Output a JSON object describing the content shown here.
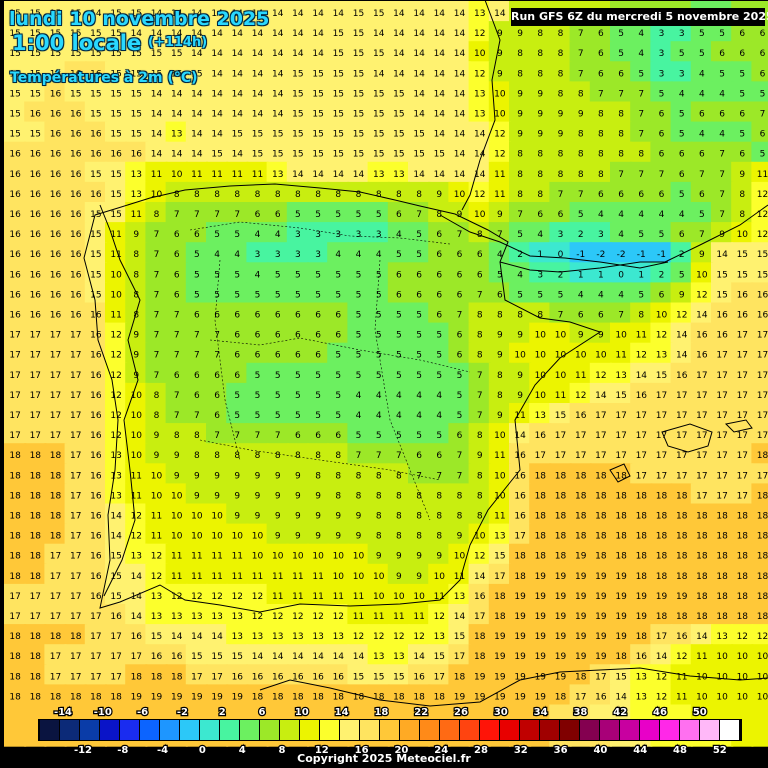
{
  "header": {
    "date": "lundi 10 novembre 2025",
    "hour": "1:00 locale",
    "lead": "(+114h)",
    "variable": "Températures à 2m (°C)"
  },
  "run_label": "Run GFS 6Z du mercredi 5 novembre 2025",
  "copyright": "Copyright 2025 Meteociel.fr",
  "legend": {
    "top_labels": [
      "-14",
      "-10",
      "-6",
      "-2",
      "2",
      "6",
      "10",
      "14",
      "18",
      "22",
      "26",
      "30",
      "34",
      "38",
      "42",
      "46",
      "50"
    ],
    "bottom_labels": [
      "-12",
      "-8",
      "-4",
      "0",
      "4",
      "8",
      "12",
      "16",
      "20",
      "24",
      "28",
      "32",
      "36",
      "40",
      "44",
      "48",
      "52"
    ],
    "colors": [
      "#0a1440",
      "#0c2a78",
      "#0a3ca8",
      "#0a14c8",
      "#1a2cf0",
      "#0c64ff",
      "#1e96ff",
      "#2cc8f8",
      "#3ce8d0",
      "#48f4a0",
      "#6cf060",
      "#9ce828",
      "#c8ee10",
      "#ecf400",
      "#fcff2c",
      "#fff270",
      "#ffe460",
      "#ffc838",
      "#ffaa24",
      "#ff8a18",
      "#ff6a14",
      "#ff4410",
      "#ff1408",
      "#e80000",
      "#c00000",
      "#a00000",
      "#800000",
      "#840050",
      "#a80078",
      "#c800a0",
      "#e800c8",
      "#ff28e8",
      "#ff70f0",
      "#ffb8f8",
      "#ffffff"
    ]
  },
  "temperature_grid": {
    "columns": 38,
    "rows": 37,
    "values": [
      [
        15,
        15,
        15,
        15,
        14,
        15,
        15,
        14,
        14,
        14,
        14,
        14,
        14,
        14,
        14,
        14,
        14,
        15,
        15,
        14,
        14,
        14,
        14,
        13,
        14,
        9,
        9,
        9,
        8,
        8,
        7,
        7,
        6,
        6,
        5,
        5,
        6,
        6
      ],
      [
        15,
        15,
        15,
        15,
        15,
        15,
        14,
        14,
        14,
        14,
        14,
        14,
        14,
        14,
        14,
        14,
        15,
        15,
        14,
        14,
        14,
        14,
        14,
        12,
        9,
        9,
        8,
        8,
        7,
        6,
        5,
        4,
        3,
        3,
        5,
        5,
        6,
        6
      ],
      [
        15,
        15,
        15,
        15,
        15,
        15,
        15,
        15,
        15,
        14,
        14,
        14,
        14,
        14,
        14,
        14,
        15,
        15,
        15,
        14,
        14,
        14,
        14,
        10,
        9,
        8,
        8,
        8,
        7,
        6,
        5,
        4,
        3,
        5,
        5,
        6,
        6,
        6
      ],
      [
        15,
        15,
        15,
        16,
        16,
        15,
        15,
        15,
        15,
        15,
        14,
        14,
        14,
        14,
        15,
        15,
        15,
        15,
        14,
        14,
        14,
        14,
        14,
        12,
        9,
        8,
        8,
        8,
        7,
        6,
        6,
        5,
        3,
        3,
        4,
        5,
        5,
        6
      ],
      [
        15,
        15,
        16,
        15,
        15,
        15,
        15,
        14,
        14,
        14,
        14,
        14,
        14,
        14,
        15,
        15,
        15,
        15,
        15,
        15,
        14,
        14,
        14,
        13,
        10,
        9,
        9,
        8,
        8,
        7,
        7,
        7,
        5,
        4,
        4,
        4,
        5,
        5
      ],
      [
        15,
        16,
        16,
        16,
        15,
        15,
        15,
        14,
        14,
        14,
        14,
        14,
        14,
        14,
        15,
        15,
        15,
        15,
        15,
        15,
        14,
        14,
        14,
        13,
        10,
        9,
        9,
        9,
        9,
        8,
        8,
        7,
        6,
        5,
        6,
        6,
        6,
        7
      ],
      [
        15,
        15,
        16,
        16,
        16,
        15,
        15,
        14,
        13,
        14,
        14,
        15,
        15,
        15,
        15,
        15,
        15,
        15,
        15,
        15,
        15,
        14,
        14,
        14,
        12,
        9,
        9,
        9,
        8,
        8,
        8,
        7,
        6,
        5,
        4,
        4,
        5,
        6
      ],
      [
        16,
        16,
        16,
        16,
        16,
        16,
        16,
        14,
        14,
        14,
        15,
        14,
        15,
        15,
        15,
        15,
        15,
        15,
        15,
        15,
        15,
        15,
        14,
        14,
        12,
        8,
        8,
        8,
        8,
        8,
        8,
        8,
        6,
        6,
        6,
        7,
        6,
        5
      ],
      [
        16,
        16,
        16,
        16,
        15,
        15,
        13,
        11,
        10,
        11,
        11,
        11,
        11,
        13,
        14,
        14,
        14,
        14,
        13,
        13,
        14,
        14,
        14,
        14,
        11,
        8,
        8,
        8,
        8,
        8,
        7,
        7,
        7,
        6,
        7,
        7,
        9,
        11
      ],
      [
        16,
        16,
        16,
        16,
        16,
        15,
        13,
        10,
        8,
        8,
        8,
        8,
        8,
        8,
        8,
        8,
        8,
        8,
        8,
        8,
        8,
        9,
        10,
        12,
        11,
        8,
        8,
        7,
        7,
        6,
        6,
        6,
        6,
        5,
        6,
        7,
        8,
        12
      ],
      [
        16,
        16,
        16,
        16,
        15,
        15,
        11,
        8,
        7,
        7,
        7,
        7,
        6,
        6,
        5,
        5,
        5,
        5,
        5,
        6,
        7,
        8,
        9,
        10,
        9,
        7,
        6,
        6,
        5,
        4,
        4,
        4,
        4,
        4,
        5,
        7,
        8,
        12
      ],
      [
        16,
        16,
        16,
        16,
        15,
        11,
        9,
        7,
        6,
        6,
        5,
        5,
        4,
        4,
        3,
        3,
        3,
        3,
        3,
        4,
        5,
        6,
        7,
        8,
        7,
        5,
        4,
        3,
        2,
        3,
        4,
        5,
        5,
        6,
        7,
        9,
        10,
        12
      ],
      [
        16,
        16,
        16,
        16,
        15,
        11,
        8,
        7,
        6,
        5,
        4,
        4,
        3,
        3,
        3,
        3,
        4,
        4,
        4,
        5,
        5,
        6,
        6,
        6,
        4,
        2,
        1,
        0,
        -1,
        -2,
        -2,
        -1,
        -1,
        2,
        9,
        14,
        15,
        15
      ],
      [
        16,
        16,
        16,
        16,
        15,
        10,
        8,
        7,
        6,
        5,
        5,
        5,
        4,
        5,
        5,
        5,
        5,
        5,
        5,
        6,
        6,
        6,
        6,
        6,
        5,
        4,
        3,
        2,
        1,
        1,
        0,
        1,
        2,
        5,
        10,
        15,
        15,
        15
      ],
      [
        16,
        16,
        16,
        16,
        15,
        10,
        8,
        7,
        6,
        5,
        5,
        5,
        5,
        5,
        5,
        5,
        5,
        5,
        5,
        6,
        6,
        6,
        6,
        7,
        6,
        5,
        5,
        5,
        4,
        4,
        4,
        5,
        6,
        9,
        12,
        15,
        16,
        16
      ],
      [
        16,
        16,
        16,
        16,
        16,
        11,
        8,
        7,
        7,
        6,
        6,
        6,
        6,
        6,
        6,
        6,
        6,
        5,
        5,
        5,
        5,
        6,
        7,
        8,
        8,
        8,
        8,
        7,
        6,
        6,
        7,
        8,
        10,
        12,
        14,
        16,
        16,
        16
      ],
      [
        17,
        17,
        17,
        17,
        16,
        12,
        9,
        7,
        7,
        7,
        7,
        6,
        6,
        6,
        6,
        6,
        6,
        5,
        5,
        5,
        5,
        5,
        6,
        8,
        9,
        9,
        10,
        10,
        9,
        9,
        10,
        11,
        12,
        14,
        16,
        16,
        17,
        17
      ],
      [
        17,
        17,
        17,
        17,
        16,
        12,
        9,
        7,
        7,
        7,
        7,
        6,
        6,
        6,
        6,
        6,
        5,
        5,
        5,
        5,
        5,
        5,
        6,
        8,
        9,
        10,
        10,
        10,
        10,
        10,
        11,
        12,
        13,
        14,
        16,
        17,
        17,
        17
      ],
      [
        17,
        17,
        17,
        17,
        16,
        12,
        9,
        7,
        6,
        6,
        6,
        6,
        5,
        5,
        5,
        5,
        5,
        5,
        5,
        5,
        5,
        5,
        5,
        7,
        8,
        9,
        10,
        10,
        11,
        12,
        13,
        14,
        15,
        16,
        17,
        17,
        17,
        17
      ],
      [
        17,
        17,
        17,
        17,
        16,
        12,
        10,
        8,
        7,
        6,
        6,
        5,
        5,
        5,
        5,
        5,
        5,
        4,
        4,
        4,
        4,
        4,
        5,
        7,
        8,
        9,
        10,
        11,
        12,
        14,
        15,
        16,
        17,
        17,
        17,
        17,
        17,
        17
      ],
      [
        17,
        17,
        17,
        17,
        16,
        12,
        10,
        8,
        7,
        7,
        6,
        5,
        5,
        5,
        5,
        5,
        5,
        4,
        4,
        4,
        4,
        4,
        5,
        7,
        9,
        11,
        13,
        15,
        16,
        17,
        17,
        17,
        17,
        17,
        17,
        17,
        17,
        17
      ],
      [
        17,
        17,
        17,
        17,
        16,
        12,
        10,
        9,
        8,
        8,
        7,
        7,
        7,
        7,
        6,
        6,
        6,
        5,
        5,
        5,
        5,
        5,
        6,
        8,
        10,
        14,
        16,
        17,
        17,
        17,
        17,
        17,
        17,
        17,
        17,
        17,
        17,
        17
      ],
      [
        18,
        18,
        18,
        17,
        16,
        13,
        10,
        9,
        9,
        8,
        8,
        8,
        8,
        8,
        8,
        8,
        8,
        7,
        7,
        7,
        6,
        6,
        7,
        9,
        11,
        16,
        17,
        17,
        17,
        17,
        17,
        17,
        17,
        17,
        17,
        17,
        17,
        18
      ],
      [
        18,
        18,
        18,
        17,
        16,
        13,
        11,
        10,
        9,
        9,
        9,
        9,
        9,
        9,
        9,
        8,
        8,
        8,
        8,
        8,
        7,
        7,
        7,
        8,
        10,
        16,
        18,
        18,
        18,
        18,
        18,
        17,
        17,
        17,
        17,
        17,
        17,
        17
      ],
      [
        18,
        18,
        18,
        17,
        16,
        13,
        11,
        10,
        10,
        9,
        9,
        9,
        9,
        9,
        9,
        9,
        8,
        8,
        8,
        8,
        8,
        8,
        8,
        8,
        10,
        16,
        18,
        18,
        18,
        18,
        18,
        18,
        18,
        18,
        17,
        17,
        17,
        18
      ],
      [
        18,
        18,
        18,
        17,
        16,
        14,
        12,
        11,
        10,
        10,
        10,
        9,
        9,
        9,
        9,
        9,
        9,
        9,
        8,
        8,
        8,
        8,
        8,
        8,
        11,
        16,
        18,
        18,
        18,
        18,
        18,
        18,
        18,
        18,
        18,
        18,
        18,
        18
      ],
      [
        18,
        18,
        18,
        17,
        16,
        14,
        12,
        11,
        10,
        10,
        10,
        10,
        10,
        9,
        9,
        9,
        9,
        9,
        8,
        8,
        8,
        8,
        9,
        10,
        13,
        17,
        18,
        18,
        18,
        18,
        18,
        18,
        18,
        18,
        18,
        18,
        18,
        18
      ],
      [
        18,
        18,
        17,
        17,
        16,
        15,
        13,
        12,
        11,
        11,
        11,
        11,
        10,
        10,
        10,
        10,
        10,
        10,
        9,
        9,
        9,
        9,
        10,
        12,
        15,
        18,
        18,
        18,
        19,
        18,
        18,
        18,
        18,
        18,
        18,
        18,
        18,
        18
      ],
      [
        18,
        18,
        17,
        17,
        16,
        15,
        14,
        12,
        11,
        11,
        11,
        11,
        11,
        11,
        11,
        11,
        10,
        10,
        10,
        9,
        9,
        10,
        11,
        14,
        17,
        18,
        19,
        19,
        19,
        19,
        19,
        18,
        18,
        18,
        18,
        18,
        18,
        18
      ],
      [
        17,
        17,
        17,
        17,
        16,
        15,
        14,
        13,
        12,
        12,
        12,
        12,
        12,
        11,
        11,
        11,
        11,
        11,
        10,
        10,
        10,
        11,
        13,
        16,
        18,
        19,
        19,
        19,
        19,
        19,
        19,
        19,
        19,
        19,
        18,
        18,
        18,
        18
      ],
      [
        17,
        17,
        17,
        17,
        17,
        16,
        14,
        13,
        13,
        13,
        13,
        13,
        12,
        12,
        12,
        12,
        12,
        11,
        11,
        11,
        11,
        12,
        14,
        17,
        18,
        19,
        19,
        19,
        19,
        19,
        19,
        19,
        18,
        18,
        18,
        18,
        18,
        18
      ],
      [
        18,
        18,
        18,
        18,
        17,
        17,
        16,
        15,
        14,
        14,
        14,
        13,
        13,
        13,
        13,
        13,
        13,
        12,
        12,
        12,
        12,
        13,
        15,
        18,
        19,
        19,
        19,
        19,
        19,
        19,
        19,
        18,
        17,
        16,
        14,
        13,
        12,
        12
      ],
      [
        18,
        18,
        17,
        17,
        17,
        17,
        17,
        16,
        16,
        15,
        15,
        15,
        14,
        14,
        14,
        14,
        14,
        14,
        13,
        13,
        14,
        15,
        17,
        18,
        19,
        19,
        19,
        19,
        19,
        19,
        18,
        16,
        14,
        12,
        11,
        10,
        10,
        10
      ],
      [
        18,
        18,
        17,
        17,
        17,
        17,
        18,
        18,
        18,
        17,
        17,
        16,
        16,
        16,
        16,
        16,
        16,
        15,
        15,
        15,
        16,
        17,
        18,
        19,
        19,
        19,
        19,
        19,
        18,
        17,
        15,
        13,
        12,
        11,
        10,
        10,
        10,
        10
      ],
      [
        18,
        18,
        18,
        18,
        18,
        18,
        19,
        19,
        19,
        19,
        19,
        19,
        18,
        18,
        18,
        18,
        18,
        18,
        18,
        18,
        18,
        18,
        19,
        19,
        19,
        19,
        19,
        18,
        17,
        16,
        14,
        13,
        12,
        11,
        10,
        10,
        10,
        10
      ],
      [
        18,
        18,
        18,
        18,
        18,
        18,
        19,
        19,
        19,
        19,
        19,
        19,
        19,
        19,
        19,
        19,
        19,
        19,
        19,
        19,
        19,
        19,
        19,
        19,
        19,
        19,
        18,
        17,
        16,
        15,
        14,
        13,
        12,
        12,
        11,
        11,
        10,
        10
      ],
      [
        18,
        18,
        18,
        18,
        18,
        18,
        19,
        19,
        19,
        19,
        19,
        19,
        19,
        19,
        19,
        19,
        19,
        19,
        19,
        19,
        19,
        19,
        19,
        19,
        19,
        19,
        18,
        17,
        17,
        16,
        15,
        14,
        13,
        12,
        12,
        12,
        11,
        11
      ]
    ]
  }
}
